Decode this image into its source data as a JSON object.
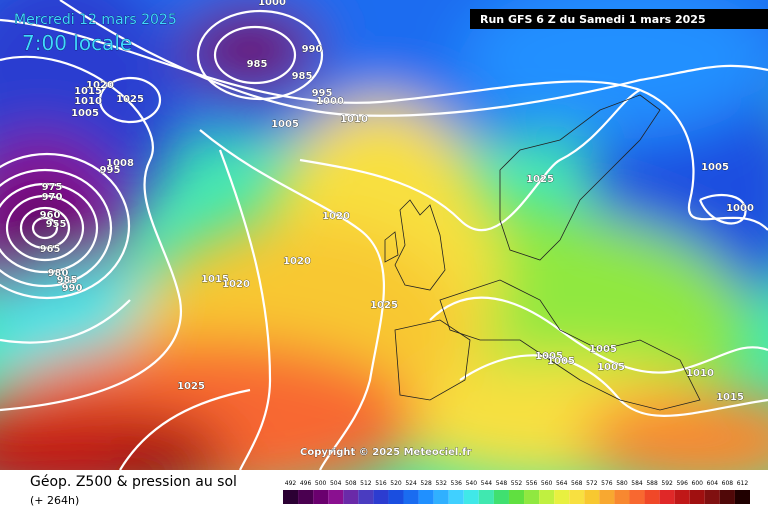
{
  "header": {
    "date": "Mercredi 12 mars 2025",
    "time": "7:00 locale",
    "run": "Run GFS 6 Z du Samedi 1 mars 2025"
  },
  "copyright": "Copyright © 2025 Meteociel.fr",
  "footer": {
    "title": "Géop. Z500 & pression au sol",
    "lead": "(+ 264h)"
  },
  "scale": {
    "values": [
      492,
      496,
      500,
      504,
      508,
      512,
      516,
      520,
      524,
      528,
      532,
      536,
      540,
      544,
      548,
      552,
      556,
      560,
      564,
      568,
      572,
      576,
      580,
      584,
      588,
      592,
      596,
      600,
      604,
      608,
      612
    ],
    "colors": [
      "#2b0033",
      "#4a0050",
      "#6a006e",
      "#8a1090",
      "#6a2aa8",
      "#4a3cc0",
      "#2c3cd0",
      "#1a4ee0",
      "#1a6cf0",
      "#2090ff",
      "#30b0ff",
      "#40d0ff",
      "#40e8e8",
      "#40e8b0",
      "#40e070",
      "#60e040",
      "#90e840",
      "#c0f040",
      "#e8f040",
      "#f8e040",
      "#f8c830",
      "#f8a830",
      "#f88830",
      "#f86830",
      "#f04828",
      "#e02828",
      "#c01818",
      "#a01010",
      "#801010",
      "#500808",
      "#200000"
    ]
  },
  "isobar_labels": [
    1000,
    990,
    985,
    985,
    995,
    1000,
    1020,
    1025,
    1015,
    1010,
    1005,
    1005,
    1010,
    1008,
    995,
    975,
    970,
    960,
    955,
    965,
    980,
    985,
    990,
    1020,
    1020,
    1015,
    1020,
    1025,
    1025,
    1005,
    1000,
    1005,
    1005,
    1005,
    1005,
    1010,
    1015,
    1025
  ]
}
